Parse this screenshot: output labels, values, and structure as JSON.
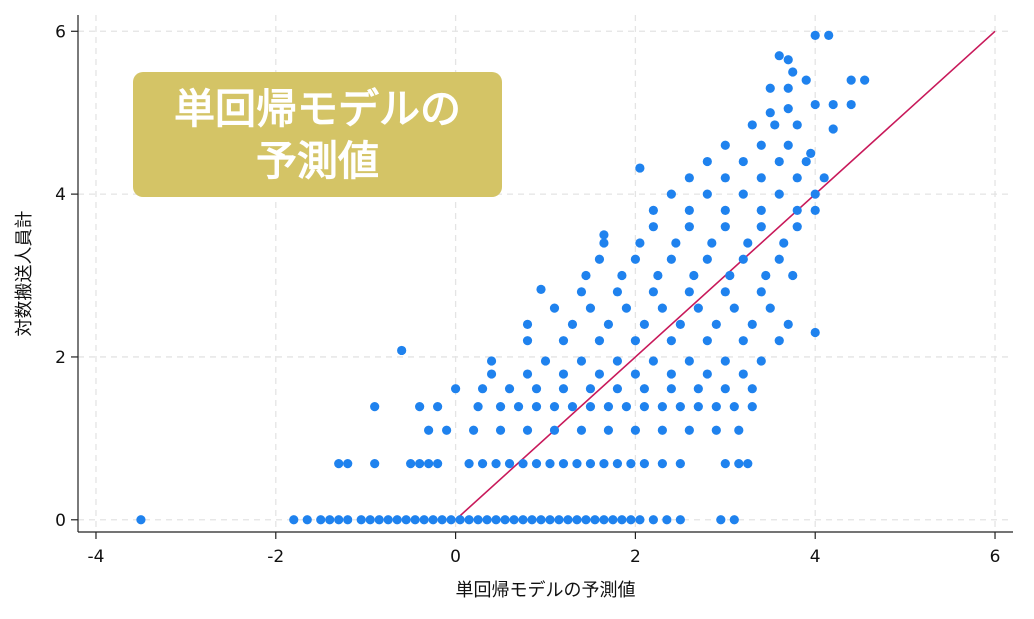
{
  "chart_data": {
    "type": "scatter",
    "title": "",
    "xlabel": "単回帰モデルの予測値",
    "ylabel": "対数搬送人員計",
    "xlim": [
      -4.2,
      6.2
    ],
    "ylim": [
      -0.15,
      6.2
    ],
    "xticks": [
      -4,
      -2,
      0,
      2,
      4,
      6
    ],
    "yticks": [
      0,
      2,
      4,
      6
    ],
    "xtick_labels": [
      "-4",
      "-2",
      "0",
      "2",
      "4",
      "6"
    ],
    "ytick_labels": [
      "0",
      "2",
      "4",
      "6"
    ],
    "grid": true,
    "legend": "none",
    "annotation": "単回帰モデルの\n予測値",
    "reference_line": {
      "from": [
        0,
        0
      ],
      "to": [
        6,
        6
      ],
      "color": "#c8195a"
    },
    "colors": {
      "points": "#1f82ee",
      "line": "#c8195a",
      "annotation_bg": "#d4c466",
      "grid": "#e4e4e4"
    },
    "series": [
      {
        "points": [
          [
            -3.5,
            0
          ],
          [
            -1.8,
            0
          ],
          [
            -1.65,
            0
          ],
          [
            -1.5,
            0
          ],
          [
            -1.4,
            0
          ],
          [
            -1.3,
            0
          ],
          [
            -1.2,
            0
          ],
          [
            -1.05,
            0
          ],
          [
            -0.95,
            0
          ],
          [
            -0.85,
            0
          ],
          [
            -0.75,
            0
          ],
          [
            -0.65,
            0
          ],
          [
            -0.55,
            0
          ],
          [
            -0.45,
            0
          ],
          [
            -0.35,
            0
          ],
          [
            -0.25,
            0
          ],
          [
            -0.15,
            0
          ],
          [
            -0.05,
            0
          ],
          [
            0.05,
            0
          ],
          [
            0.15,
            0
          ],
          [
            0.25,
            0
          ],
          [
            0.35,
            0
          ],
          [
            0.45,
            0
          ],
          [
            0.55,
            0
          ],
          [
            0.65,
            0
          ],
          [
            0.75,
            0
          ],
          [
            0.85,
            0
          ],
          [
            0.95,
            0
          ],
          [
            1.05,
            0
          ],
          [
            1.15,
            0
          ],
          [
            1.25,
            0
          ],
          [
            1.35,
            0
          ],
          [
            1.45,
            0
          ],
          [
            1.55,
            0
          ],
          [
            1.65,
            0
          ],
          [
            1.75,
            0
          ],
          [
            1.85,
            0
          ],
          [
            1.95,
            0
          ],
          [
            2.05,
            0
          ],
          [
            2.2,
            0
          ],
          [
            2.35,
            0
          ],
          [
            2.5,
            0
          ],
          [
            2.95,
            0
          ],
          [
            3.1,
            0
          ],
          [
            -1.3,
            0.69
          ],
          [
            -1.2,
            0.69
          ],
          [
            -0.9,
            0.69
          ],
          [
            -0.5,
            0.69
          ],
          [
            -0.4,
            0.69
          ],
          [
            -0.3,
            0.69
          ],
          [
            -0.2,
            0.69
          ],
          [
            0.15,
            0.69
          ],
          [
            0.3,
            0.69
          ],
          [
            0.45,
            0.69
          ],
          [
            0.6,
            0.69
          ],
          [
            0.75,
            0.69
          ],
          [
            0.9,
            0.69
          ],
          [
            1.05,
            0.69
          ],
          [
            1.2,
            0.69
          ],
          [
            1.35,
            0.69
          ],
          [
            1.5,
            0.69
          ],
          [
            1.65,
            0.69
          ],
          [
            1.8,
            0.69
          ],
          [
            1.95,
            0.69
          ],
          [
            2.1,
            0.69
          ],
          [
            2.3,
            0.69
          ],
          [
            2.5,
            0.69
          ],
          [
            3.0,
            0.69
          ],
          [
            3.15,
            0.69
          ],
          [
            3.25,
            0.69
          ],
          [
            -0.9,
            1.39
          ],
          [
            -0.4,
            1.39
          ],
          [
            -0.2,
            1.39
          ],
          [
            0.25,
            1.39
          ],
          [
            0.5,
            1.39
          ],
          [
            0.7,
            1.39
          ],
          [
            0.9,
            1.39
          ],
          [
            1.1,
            1.39
          ],
          [
            1.3,
            1.39
          ],
          [
            1.5,
            1.39
          ],
          [
            1.7,
            1.39
          ],
          [
            1.9,
            1.39
          ],
          [
            2.1,
            1.39
          ],
          [
            2.3,
            1.39
          ],
          [
            2.5,
            1.39
          ],
          [
            2.7,
            1.39
          ],
          [
            2.9,
            1.39
          ],
          [
            3.1,
            1.39
          ],
          [
            3.3,
            1.39
          ],
          [
            -0.3,
            1.1
          ],
          [
            -0.1,
            1.1
          ],
          [
            0.2,
            1.1
          ],
          [
            0.5,
            1.1
          ],
          [
            0.8,
            1.1
          ],
          [
            1.1,
            1.1
          ],
          [
            1.4,
            1.1
          ],
          [
            1.7,
            1.1
          ],
          [
            2.0,
            1.1
          ],
          [
            2.3,
            1.1
          ],
          [
            2.6,
            1.1
          ],
          [
            2.9,
            1.1
          ],
          [
            3.15,
            1.1
          ],
          [
            0.0,
            1.61
          ],
          [
            0.3,
            1.61
          ],
          [
            0.6,
            1.61
          ],
          [
            0.9,
            1.61
          ],
          [
            1.2,
            1.61
          ],
          [
            1.5,
            1.61
          ],
          [
            1.8,
            1.61
          ],
          [
            2.1,
            1.61
          ],
          [
            2.4,
            1.61
          ],
          [
            2.7,
            1.61
          ],
          [
            3.0,
            1.61
          ],
          [
            3.3,
            1.61
          ],
          [
            0.4,
            1.79
          ],
          [
            0.8,
            1.79
          ],
          [
            1.2,
            1.79
          ],
          [
            1.6,
            1.79
          ],
          [
            2.0,
            1.79
          ],
          [
            2.4,
            1.79
          ],
          [
            2.8,
            1.79
          ],
          [
            3.2,
            1.79
          ],
          [
            -0.6,
            2.08
          ],
          [
            0.4,
            1.95
          ],
          [
            1.0,
            1.95
          ],
          [
            1.4,
            1.95
          ],
          [
            1.8,
            1.95
          ],
          [
            2.2,
            1.95
          ],
          [
            2.6,
            1.95
          ],
          [
            3.0,
            1.95
          ],
          [
            3.4,
            1.95
          ],
          [
            0.8,
            2.2
          ],
          [
            1.2,
            2.2
          ],
          [
            1.6,
            2.2
          ],
          [
            2.0,
            2.2
          ],
          [
            2.4,
            2.2
          ],
          [
            2.8,
            2.2
          ],
          [
            3.2,
            2.2
          ],
          [
            3.6,
            2.2
          ],
          [
            0.8,
            2.4
          ],
          [
            1.3,
            2.4
          ],
          [
            1.7,
            2.4
          ],
          [
            2.1,
            2.4
          ],
          [
            2.5,
            2.4
          ],
          [
            2.9,
            2.4
          ],
          [
            3.3,
            2.4
          ],
          [
            3.7,
            2.4
          ],
          [
            4.0,
            2.3
          ],
          [
            1.1,
            2.6
          ],
          [
            1.5,
            2.6
          ],
          [
            1.9,
            2.6
          ],
          [
            2.3,
            2.6
          ],
          [
            2.7,
            2.6
          ],
          [
            3.1,
            2.6
          ],
          [
            3.5,
            2.6
          ],
          [
            0.95,
            2.83
          ],
          [
            1.4,
            2.8
          ],
          [
            1.8,
            2.8
          ],
          [
            2.2,
            2.8
          ],
          [
            2.6,
            2.8
          ],
          [
            3.0,
            2.8
          ],
          [
            3.4,
            2.8
          ],
          [
            1.45,
            3.0
          ],
          [
            1.85,
            3.0
          ],
          [
            2.25,
            3.0
          ],
          [
            2.65,
            3.0
          ],
          [
            3.05,
            3.0
          ],
          [
            3.45,
            3.0
          ],
          [
            3.75,
            3.0
          ],
          [
            1.6,
            3.2
          ],
          [
            2.0,
            3.2
          ],
          [
            2.4,
            3.2
          ],
          [
            2.8,
            3.2
          ],
          [
            3.2,
            3.2
          ],
          [
            3.6,
            3.2
          ],
          [
            1.65,
            3.4
          ],
          [
            2.05,
            3.4
          ],
          [
            2.45,
            3.4
          ],
          [
            2.85,
            3.4
          ],
          [
            3.25,
            3.4
          ],
          [
            3.65,
            3.4
          ],
          [
            1.65,
            3.5
          ],
          [
            2.2,
            3.6
          ],
          [
            2.6,
            3.6
          ],
          [
            3.0,
            3.6
          ],
          [
            3.4,
            3.6
          ],
          [
            3.8,
            3.6
          ],
          [
            2.2,
            3.8
          ],
          [
            2.6,
            3.8
          ],
          [
            3.0,
            3.8
          ],
          [
            3.4,
            3.8
          ],
          [
            3.8,
            3.8
          ],
          [
            4.0,
            3.8
          ],
          [
            2.4,
            4.0
          ],
          [
            2.8,
            4.0
          ],
          [
            3.2,
            4.0
          ],
          [
            3.6,
            4.0
          ],
          [
            4.0,
            4.0
          ],
          [
            2.6,
            4.2
          ],
          [
            3.0,
            4.2
          ],
          [
            3.4,
            4.2
          ],
          [
            3.8,
            4.2
          ],
          [
            4.1,
            4.2
          ],
          [
            2.05,
            4.32
          ],
          [
            2.8,
            4.4
          ],
          [
            3.2,
            4.4
          ],
          [
            3.6,
            4.4
          ],
          [
            3.9,
            4.4
          ],
          [
            3.0,
            4.6
          ],
          [
            3.4,
            4.6
          ],
          [
            3.7,
            4.6
          ],
          [
            3.95,
            4.5
          ],
          [
            3.3,
            4.85
          ],
          [
            3.55,
            4.85
          ],
          [
            3.8,
            4.85
          ],
          [
            4.2,
            4.8
          ],
          [
            3.5,
            5.0
          ],
          [
            3.7,
            5.05
          ],
          [
            4.0,
            5.1
          ],
          [
            4.2,
            5.1
          ],
          [
            4.4,
            5.1
          ],
          [
            3.5,
            5.3
          ],
          [
            3.7,
            5.3
          ],
          [
            3.9,
            5.4
          ],
          [
            4.4,
            5.4
          ],
          [
            4.55,
            5.4
          ],
          [
            3.6,
            5.7
          ],
          [
            3.7,
            5.65
          ],
          [
            3.75,
            5.5
          ],
          [
            4.0,
            5.95
          ],
          [
            4.15,
            5.95
          ]
        ]
      }
    ]
  }
}
